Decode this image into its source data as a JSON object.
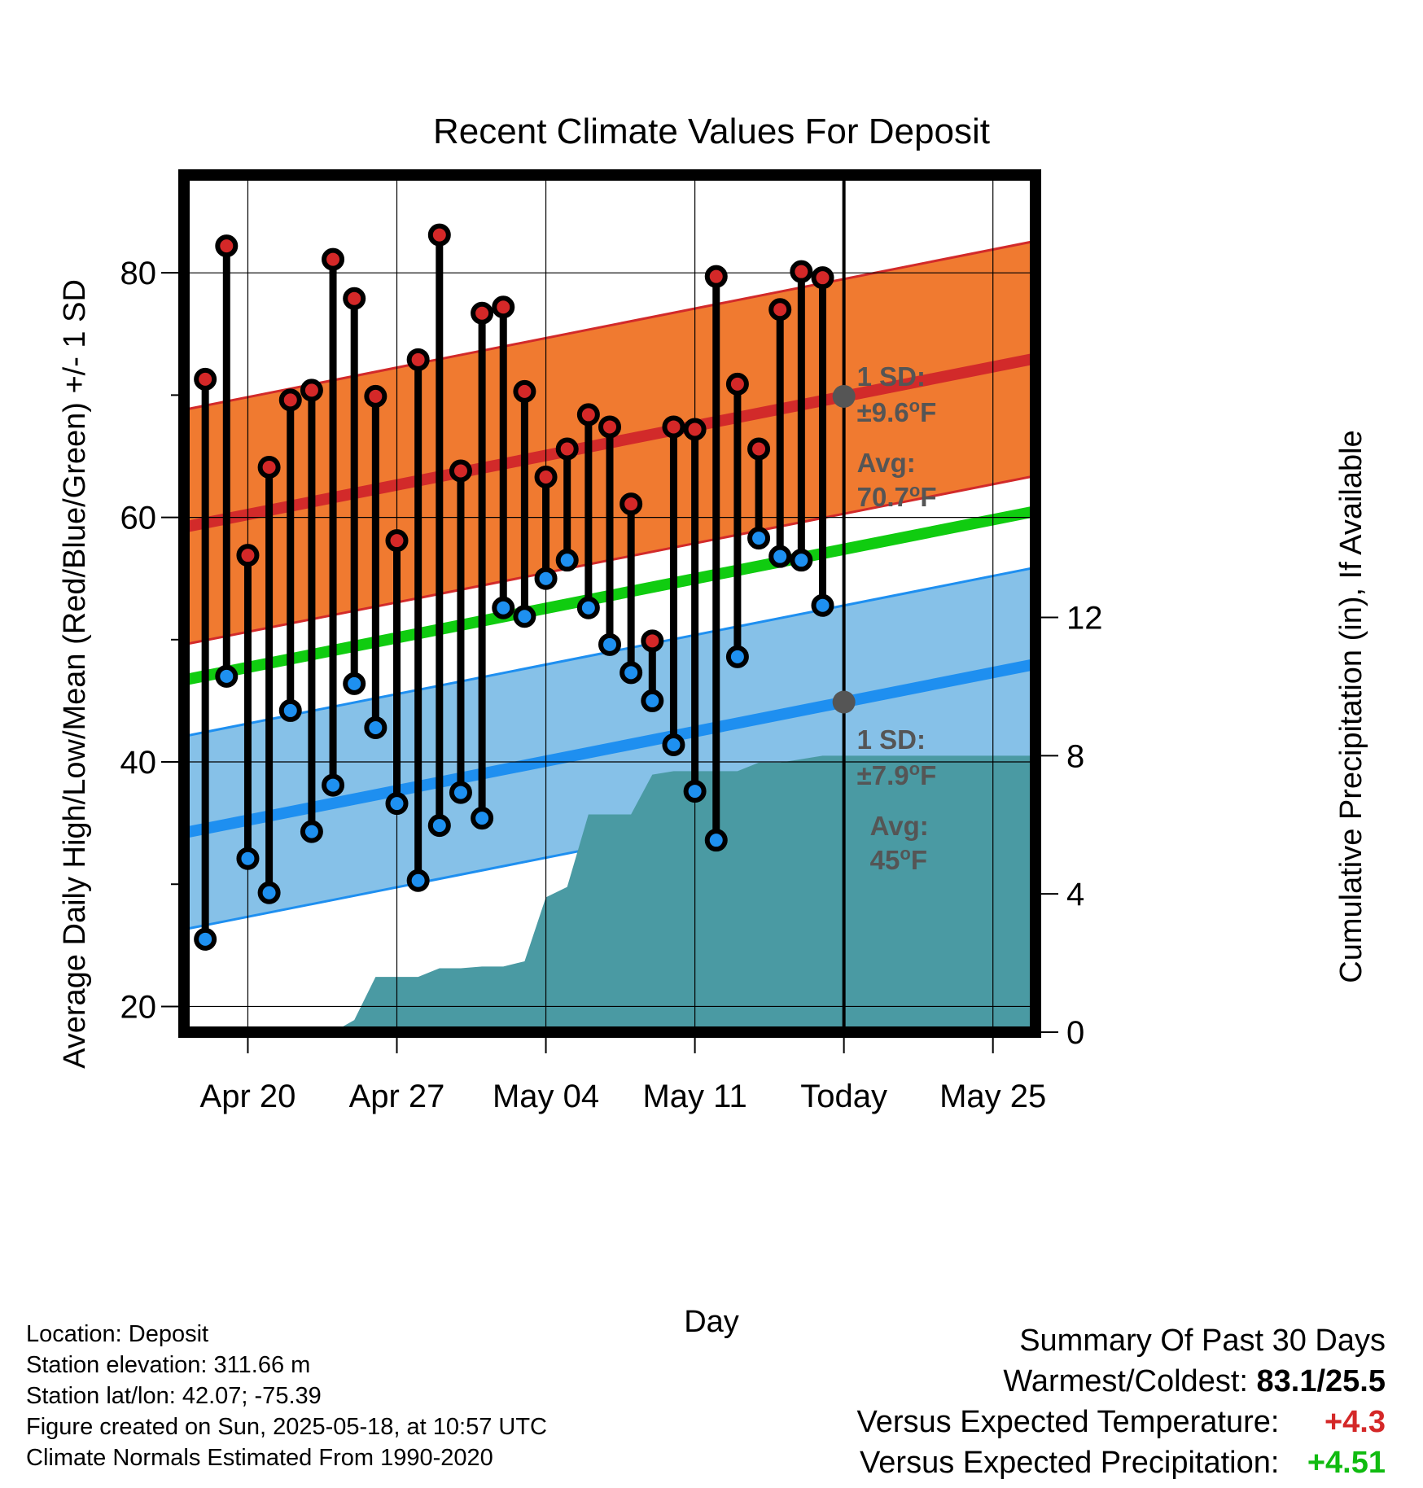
{
  "chart_data": {
    "type": "line",
    "title": "Recent Climate Values For Deposit",
    "xlabel": "Day",
    "ylabel": "Average Daily High/Low/Mean (Red/Blue/Green) +/- 1 SD",
    "y2label": "Cumulative Precipitation (in), If Available",
    "ylim": [
      17.9,
      88
    ],
    "y2lim": [
      0,
      24.8
    ],
    "yticks": [
      20,
      40,
      60,
      80
    ],
    "y2ticks": [
      0,
      4,
      8,
      12
    ],
    "xlim": [
      "2025-04-17",
      "2025-05-27"
    ],
    "xticks": [
      {
        "date": "2025-04-20",
        "label": "Apr 20"
      },
      {
        "date": "2025-04-27",
        "label": "Apr 27"
      },
      {
        "date": "2025-05-04",
        "label": "May 04"
      },
      {
        "date": "2025-05-11",
        "label": "May 11"
      },
      {
        "date": "2025-05-18",
        "label": "Today"
      },
      {
        "date": "2025-05-25",
        "label": "May 25"
      }
    ],
    "today": "2025-05-18",
    "grid": true,
    "colors": {
      "high_band": "#f07a30",
      "high_line": "#d22a2a",
      "low_band": "#86c1e8",
      "low_line": "#1e8ff0",
      "mean_line": "#10cc10",
      "precip": "#4a9aa3",
      "high_dot": "#d42828",
      "low_dot": "#1e90f0",
      "today_dot": "#555555"
    },
    "normals": {
      "dates": [
        "2025-04-17",
        "2025-05-27"
      ],
      "high_avg": [
        59.2,
        73.0
      ],
      "high_sd": 9.6,
      "low_avg": [
        34.2,
        48.0
      ],
      "low_sd": 7.9,
      "mean_avg": [
        46.7,
        60.5
      ]
    },
    "daily": [
      {
        "date": "2025-04-18",
        "high": 71.3,
        "low": 25.5
      },
      {
        "date": "2025-04-19",
        "high": 82.2,
        "low": 47.0
      },
      {
        "date": "2025-04-20",
        "high": 56.9,
        "low": 32.1
      },
      {
        "date": "2025-04-21",
        "high": 64.1,
        "low": 29.3
      },
      {
        "date": "2025-04-22",
        "high": 69.6,
        "low": 44.2
      },
      {
        "date": "2025-04-23",
        "high": 70.4,
        "low": 34.3
      },
      {
        "date": "2025-04-24",
        "high": 81.1,
        "low": 38.1
      },
      {
        "date": "2025-04-25",
        "high": 77.9,
        "low": 46.4
      },
      {
        "date": "2025-04-26",
        "high": 69.9,
        "low": 42.8
      },
      {
        "date": "2025-04-27",
        "high": 58.1,
        "low": 36.6
      },
      {
        "date": "2025-04-28",
        "high": 72.9,
        "low": 30.3
      },
      {
        "date": "2025-04-29",
        "high": 83.1,
        "low": 34.8
      },
      {
        "date": "2025-04-30",
        "high": 63.8,
        "low": 37.5
      },
      {
        "date": "2025-05-01",
        "high": 76.7,
        "low": 35.4
      },
      {
        "date": "2025-05-02",
        "high": 77.2,
        "low": 52.6
      },
      {
        "date": "2025-05-03",
        "high": 70.3,
        "low": 51.9
      },
      {
        "date": "2025-05-04",
        "high": 63.3,
        "low": 55.0
      },
      {
        "date": "2025-05-05",
        "high": 65.6,
        "low": 56.5
      },
      {
        "date": "2025-05-06",
        "high": 68.4,
        "low": 52.6
      },
      {
        "date": "2025-05-07",
        "high": 67.4,
        "low": 49.6
      },
      {
        "date": "2025-05-08",
        "high": 61.1,
        "low": 47.3
      },
      {
        "date": "2025-05-09",
        "high": 49.9,
        "low": 45.0
      },
      {
        "date": "2025-05-10",
        "high": 67.4,
        "low": 41.4
      },
      {
        "date": "2025-05-11",
        "high": 67.2,
        "low": 37.6
      },
      {
        "date": "2025-05-12",
        "high": 79.7,
        "low": 33.6
      },
      {
        "date": "2025-05-13",
        "high": 70.9,
        "low": 48.6
      },
      {
        "date": "2025-05-14",
        "high": 65.6,
        "low": 58.3
      },
      {
        "date": "2025-05-15",
        "high": 77.0,
        "low": 56.8
      },
      {
        "date": "2025-05-16",
        "high": 80.1,
        "low": 56.5
      },
      {
        "date": "2025-05-17",
        "high": 79.6,
        "low": 52.8
      }
    ],
    "precip_cumulative": [
      {
        "date": "2025-04-17",
        "value": 0.0
      },
      {
        "date": "2025-04-22",
        "value": 0.0
      },
      {
        "date": "2025-04-23",
        "value": 0.0
      },
      {
        "date": "2025-04-24",
        "value": 0.0
      },
      {
        "date": "2025-04-25",
        "value": 0.35
      },
      {
        "date": "2025-04-26",
        "value": 1.6
      },
      {
        "date": "2025-04-27",
        "value": 1.6
      },
      {
        "date": "2025-04-28",
        "value": 1.6
      },
      {
        "date": "2025-04-29",
        "value": 1.85
      },
      {
        "date": "2025-04-30",
        "value": 1.85
      },
      {
        "date": "2025-05-01",
        "value": 1.9
      },
      {
        "date": "2025-05-02",
        "value": 1.9
      },
      {
        "date": "2025-05-03",
        "value": 2.05
      },
      {
        "date": "2025-05-04",
        "value": 3.9
      },
      {
        "date": "2025-05-05",
        "value": 4.2
      },
      {
        "date": "2025-05-06",
        "value": 6.3
      },
      {
        "date": "2025-05-07",
        "value": 6.3
      },
      {
        "date": "2025-05-08",
        "value": 6.3
      },
      {
        "date": "2025-05-09",
        "value": 7.45
      },
      {
        "date": "2025-05-10",
        "value": 7.55
      },
      {
        "date": "2025-05-11",
        "value": 7.55
      },
      {
        "date": "2025-05-12",
        "value": 7.55
      },
      {
        "date": "2025-05-13",
        "value": 7.55
      },
      {
        "date": "2025-05-14",
        "value": 7.8
      },
      {
        "date": "2025-05-15",
        "value": 7.8
      },
      {
        "date": "2025-05-16",
        "value": 7.9
      },
      {
        "date": "2025-05-17",
        "value": 8.0
      },
      {
        "date": "2025-05-27",
        "value": 8.0
      }
    ],
    "annotations": {
      "high_sd_label": "1 SD:",
      "high_sd_value": "±9.6",
      "high_avg_label": "Avg:",
      "high_avg_value": "70.7",
      "low_sd_label": "1 SD:",
      "low_sd_value": "±7.9",
      "low_avg_label": "Avg:",
      "low_avg_value": "45",
      "unit_sup": "o",
      "unit": "F",
      "days_number": "30",
      "days_word": "Days"
    }
  },
  "info": {
    "location": "Location: Deposit",
    "elevation": "Station elevation: 311.66 m",
    "latlon": "Station lat/lon: 42.07; -75.39",
    "created": "Figure created on Sun, 2025-05-18, at 10:57 UTC",
    "normals": "Climate Normals Estimated From 1990-2020"
  },
  "summary": {
    "heading": "Summary Of Past 30 Days",
    "warm_cold_label": "Warmest/Coldest:",
    "warm_cold_value": "83.1/25.5",
    "temp_label": "Versus Expected Temperature:",
    "temp_value": "+4.3",
    "temp_color": "#d42828",
    "precip_label": "Versus Expected Precipitation:",
    "precip_value": "+4.51",
    "precip_color": "#10bb10"
  }
}
